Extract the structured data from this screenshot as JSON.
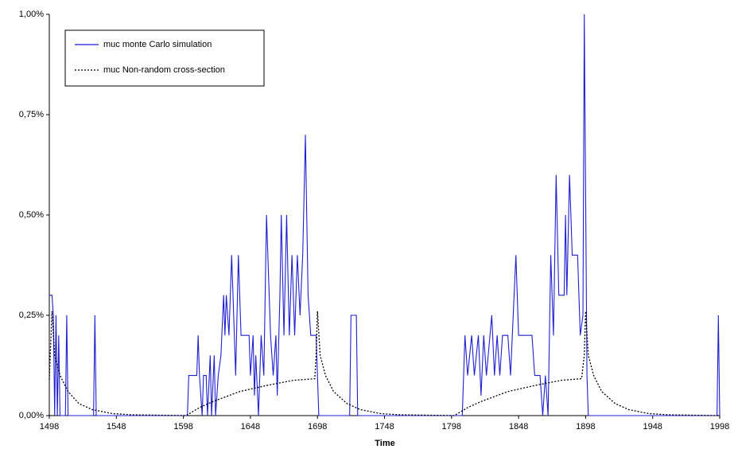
{
  "chart_data": {
    "type": "line",
    "x_label": "Time",
    "xlim": [
      1498,
      1998
    ],
    "xticks": [
      1498,
      1548,
      1598,
      1648,
      1698,
      1748,
      1798,
      1848,
      1898,
      1948,
      1998
    ],
    "ylim": [
      0,
      1
    ],
    "yticks": [
      {
        "value": 0,
        "label": "0,00%"
      },
      {
        "value": 0.25,
        "label": "0,25%"
      },
      {
        "value": 0.5,
        "label": "0,50%"
      },
      {
        "value": 0.75,
        "label": "0,75%"
      },
      {
        "value": 1,
        "label": "1,00%"
      }
    ],
    "legend": "top-left",
    "series": [
      {
        "name": "muc monte Carlo simulation",
        "color": "#1f1fd0",
        "style": "solid",
        "x": [
          1498,
          1500,
          1501,
          1502,
          1503,
          1504,
          1505,
          1506,
          1510,
          1511,
          1512,
          1531,
          1532,
          1533,
          1601,
          1602,
          1608,
          1609,
          1610,
          1612,
          1613,
          1615,
          1616,
          1618,
          1619,
          1621,
          1622,
          1624,
          1626,
          1628,
          1629,
          1630,
          1632,
          1634,
          1636,
          1637,
          1639,
          1641,
          1647,
          1648,
          1650,
          1651,
          1652,
          1654,
          1656,
          1658,
          1660,
          1662,
          1663,
          1665,
          1667,
          1668,
          1670,
          1671,
          1673,
          1675,
          1677,
          1679,
          1681,
          1683,
          1685,
          1687,
          1689,
          1691,
          1693,
          1697,
          1699,
          1722,
          1723,
          1727,
          1728,
          1806,
          1808,
          1810,
          1813,
          1815,
          1818,
          1820,
          1822,
          1824,
          1828,
          1830,
          1832,
          1834,
          1836,
          1840,
          1842,
          1846,
          1848,
          1858,
          1860,
          1864,
          1866,
          1868,
          1870,
          1872,
          1874,
          1876,
          1878,
          1882,
          1883,
          1884,
          1886,
          1888,
          1892,
          1894,
          1896,
          1897,
          1899,
          1900,
          1996,
          1997,
          1998
        ],
        "values": [
          0.3,
          0.3,
          0.25,
          0,
          0.25,
          0,
          0.2,
          0,
          0,
          0.25,
          0,
          0,
          0.25,
          0,
          0,
          0.1,
          0.1,
          0.2,
          0.1,
          0,
          0.1,
          0.1,
          0,
          0.15,
          0,
          0.15,
          0,
          0.1,
          0.15,
          0.3,
          0.2,
          0.3,
          0.2,
          0.4,
          0.2,
          0.1,
          0.4,
          0.2,
          0.2,
          0.1,
          0.2,
          0.05,
          0.15,
          0,
          0.2,
          0.1,
          0.5,
          0.3,
          0.2,
          0.1,
          0.2,
          0.05,
          0.3,
          0.5,
          0.2,
          0.5,
          0.2,
          0.4,
          0.2,
          0.4,
          0.25,
          0.4,
          0.7,
          0.3,
          0.2,
          0.2,
          0,
          0,
          0.25,
          0.25,
          0,
          0,
          0.2,
          0.1,
          0.2,
          0.1,
          0.2,
          0.05,
          0.2,
          0.1,
          0.25,
          0.1,
          0.2,
          0.1,
          0.2,
          0.2,
          0.1,
          0.4,
          0.2,
          0.2,
          0.1,
          0.1,
          0,
          0.1,
          0,
          0.4,
          0.2,
          0.6,
          0.3,
          0.3,
          0.5,
          0.3,
          0.6,
          0.4,
          0.4,
          0.2,
          0.25,
          1,
          0.1,
          0,
          0,
          0.25,
          0
        ]
      },
      {
        "name": "muc Non-random cross-section",
        "color": "#000000",
        "style": "dotted",
        "x": [
          1498,
          1500,
          1502,
          1506,
          1512,
          1520,
          1530,
          1545,
          1560,
          1600,
          1610,
          1620,
          1640,
          1660,
          1680,
          1696,
          1697,
          1698,
          1700,
          1704,
          1710,
          1720,
          1730,
          1745,
          1760,
          1800,
          1810,
          1820,
          1840,
          1860,
          1880,
          1895,
          1897,
          1898,
          1900,
          1904,
          1910,
          1920,
          1930,
          1945,
          1960,
          1998
        ],
        "values": [
          0.09,
          0.26,
          0.15,
          0.1,
          0.06,
          0.03,
          0.015,
          0.005,
          0.002,
          0,
          0.02,
          0.035,
          0.06,
          0.075,
          0.088,
          0.092,
          0.15,
          0.26,
          0.15,
          0.1,
          0.06,
          0.03,
          0.015,
          0.005,
          0.002,
          0,
          0.02,
          0.035,
          0.06,
          0.075,
          0.088,
          0.092,
          0.15,
          0.26,
          0.15,
          0.1,
          0.06,
          0.03,
          0.015,
          0.005,
          0.002,
          0
        ]
      }
    ]
  }
}
